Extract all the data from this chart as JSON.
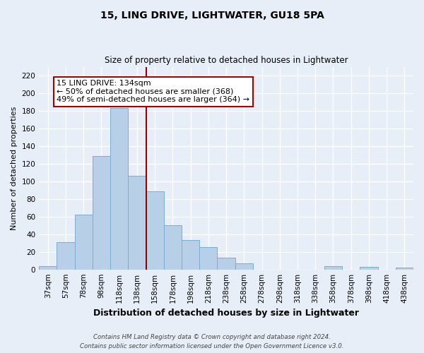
{
  "title": "15, LING DRIVE, LIGHTWATER, GU18 5PA",
  "subtitle": "Size of property relative to detached houses in Lightwater",
  "xlabel": "Distribution of detached houses by size in Lightwater",
  "ylabel": "Number of detached properties",
  "bar_labels": [
    "37sqm",
    "57sqm",
    "78sqm",
    "98sqm",
    "118sqm",
    "138sqm",
    "158sqm",
    "178sqm",
    "198sqm",
    "218sqm",
    "238sqm",
    "258sqm",
    "278sqm",
    "298sqm",
    "318sqm",
    "338sqm",
    "358sqm",
    "378sqm",
    "398sqm",
    "418sqm",
    "438sqm"
  ],
  "bar_values": [
    4,
    31,
    62,
    129,
    183,
    106,
    89,
    50,
    33,
    25,
    13,
    7,
    0,
    0,
    0,
    0,
    4,
    0,
    3,
    0,
    2
  ],
  "bar_color": "#b8cfe8",
  "bar_edge_color": "#7aadd4",
  "vline_x": 5.5,
  "vline_color": "#990000",
  "ylim": [
    0,
    230
  ],
  "yticks": [
    0,
    20,
    40,
    60,
    80,
    100,
    120,
    140,
    160,
    180,
    200,
    220
  ],
  "annotation_title": "15 LING DRIVE: 134sqm",
  "annotation_line1": "← 50% of detached houses are smaller (368)",
  "annotation_line2": "49% of semi-detached houses are larger (364) →",
  "annotation_box_facecolor": "#ffffff",
  "annotation_box_edgecolor": "#aa0000",
  "footer_line1": "Contains HM Land Registry data © Crown copyright and database right 2024.",
  "footer_line2": "Contains public sector information licensed under the Open Government Licence v3.0.",
  "background_color": "#e8eef8",
  "grid_color": "#ffffff",
  "title_fontsize": 10,
  "subtitle_fontsize": 8.5,
  "ylabel_fontsize": 8,
  "xlabel_fontsize": 9,
  "tick_fontsize": 7.5,
  "ann_fontsize": 8
}
